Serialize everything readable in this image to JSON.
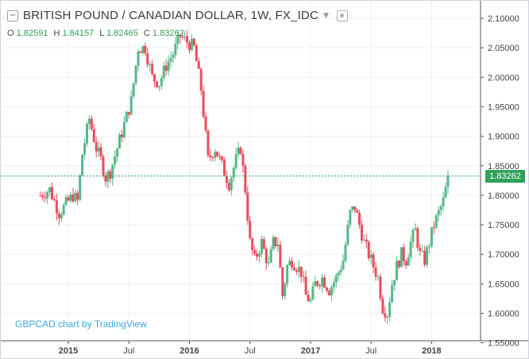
{
  "header": {
    "title": "BRITISH POUND / CANADIAN DOLLAR, 1W, FX_IDC",
    "collapse_icon": "minus-box-icon",
    "menu_icon": "caret-down-icon",
    "visibility_icon": "eye-icon"
  },
  "ohlc": {
    "o_label": "O",
    "o": "1.82591",
    "h_label": "H",
    "h": "1.84157",
    "l_label": "L",
    "l": "1.82465",
    "c_label": "C",
    "c": "1.83262"
  },
  "watermark": "GBPCAD chart by TradingView",
  "last_price": "1.83262",
  "colors": {
    "up": "#53b987",
    "down": "#eb4d5c",
    "last_line": "#30a15a",
    "grid": "#eef0f3"
  },
  "chart_data": {
    "type": "candlestick",
    "title": "BRITISH POUND / CANADIAN DOLLAR, 1W, FX_IDC",
    "ylim": [
      1.54,
      2.11
    ],
    "y_ticks": [
      "1.55000",
      "1.60000",
      "1.65000",
      "1.70000",
      "1.75000",
      "1.80000",
      "1.85000",
      "1.90000",
      "1.95000",
      "2.00000",
      "2.05000",
      "2.10000"
    ],
    "x_ticks": [
      {
        "label": "2015",
        "t": 12
      },
      {
        "label": "Jul",
        "t": 38
      },
      {
        "label": "2016",
        "t": 64
      },
      {
        "label": "Jul",
        "t": 90
      },
      {
        "label": "2017",
        "t": 116
      },
      {
        "label": "Jul",
        "t": 142
      },
      {
        "label": "2018",
        "t": 168
      }
    ],
    "t_range": [
      -17,
      189
    ],
    "last_price": 1.83262,
    "grid": true,
    "anchors": [
      [
        0,
        1.8
      ],
      [
        4,
        1.81
      ],
      [
        8,
        1.77
      ],
      [
        10,
        1.78
      ],
      [
        14,
        1.8
      ],
      [
        16,
        1.79
      ],
      [
        18,
        1.87
      ],
      [
        21,
        1.93
      ],
      [
        24,
        1.88
      ],
      [
        26,
        1.86
      ],
      [
        28,
        1.83
      ],
      [
        30,
        1.84
      ],
      [
        33,
        1.88
      ],
      [
        36,
        1.92
      ],
      [
        39,
        1.96
      ],
      [
        42,
        2.05
      ],
      [
        45,
        2.05
      ],
      [
        48,
        2.0
      ],
      [
        51,
        1.99
      ],
      [
        54,
        2.02
      ],
      [
        57,
        2.04
      ],
      [
        60,
        2.07
      ],
      [
        63,
        2.06
      ],
      [
        66,
        2.05
      ],
      [
        69,
        1.98
      ],
      [
        72,
        1.86
      ],
      [
        75,
        1.88
      ],
      [
        78,
        1.85
      ],
      [
        81,
        1.82
      ],
      [
        84,
        1.86
      ],
      [
        86,
        1.88
      ],
      [
        88,
        1.81
      ],
      [
        90,
        1.72
      ],
      [
        92,
        1.69
      ],
      [
        95,
        1.72
      ],
      [
        98,
        1.68
      ],
      [
        100,
        1.72
      ],
      [
        102,
        1.72
      ],
      [
        104,
        1.63
      ],
      [
        106,
        1.68
      ],
      [
        108,
        1.69
      ],
      [
        110,
        1.68
      ],
      [
        112,
        1.67
      ],
      [
        114,
        1.63
      ],
      [
        116,
        1.62
      ],
      [
        118,
        1.65
      ],
      [
        121,
        1.66
      ],
      [
        124,
        1.64
      ],
      [
        127,
        1.66
      ],
      [
        130,
        1.69
      ],
      [
        133,
        1.77
      ],
      [
        135,
        1.78
      ],
      [
        137,
        1.75
      ],
      [
        139,
        1.72
      ],
      [
        141,
        1.7
      ],
      [
        143,
        1.68
      ],
      [
        145,
        1.66
      ],
      [
        147,
        1.61
      ],
      [
        149,
        1.6
      ],
      [
        151,
        1.65
      ],
      [
        153,
        1.68
      ],
      [
        155,
        1.7
      ],
      [
        157,
        1.69
      ],
      [
        159,
        1.72
      ],
      [
        161,
        1.74
      ],
      [
        163,
        1.7
      ],
      [
        165,
        1.69
      ],
      [
        167,
        1.72
      ],
      [
        169,
        1.75
      ],
      [
        171,
        1.77
      ],
      [
        173,
        1.79
      ],
      [
        174,
        1.81
      ],
      [
        175,
        1.8326
      ]
    ]
  }
}
